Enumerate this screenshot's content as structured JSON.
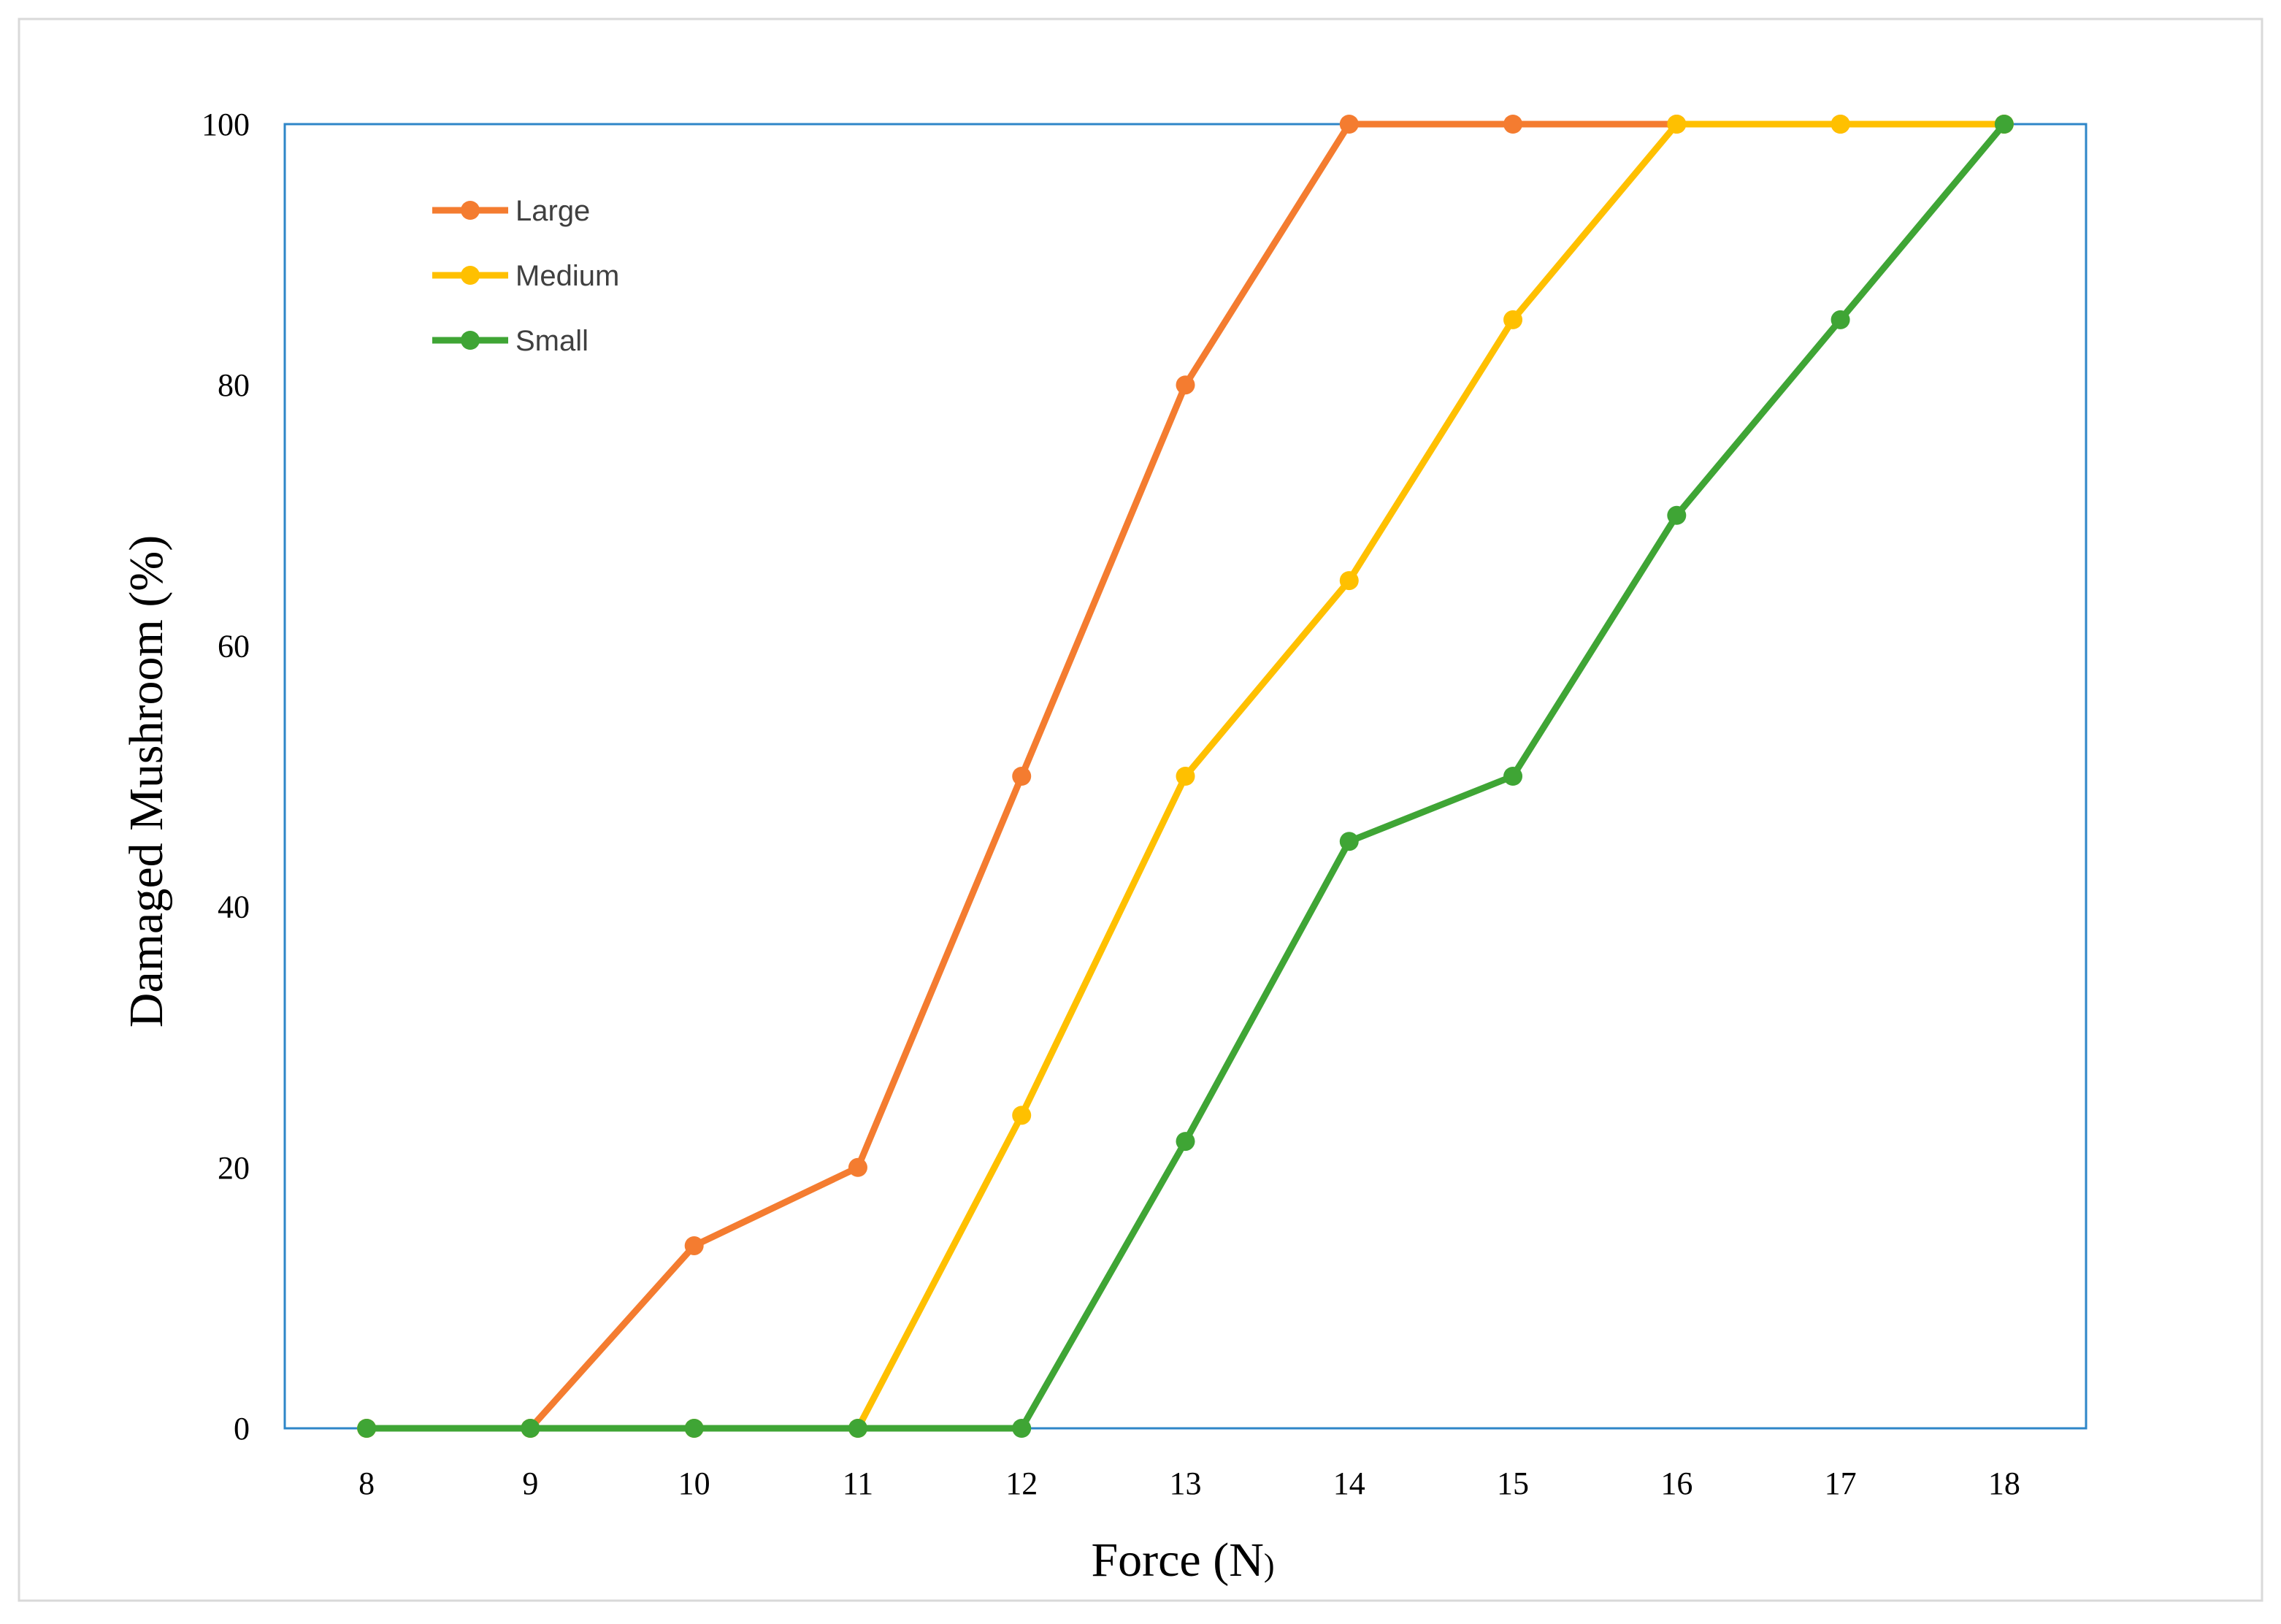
{
  "chart_data": {
    "type": "line",
    "xlabel_main": "Force (N",
    "xlabel_paren": ")",
    "ylabel": "Damaged Mushroom (%)",
    "x": [
      8,
      9,
      10,
      11,
      12,
      13,
      14,
      15,
      16,
      17,
      18
    ],
    "xlim": [
      7.5,
      18.5
    ],
    "ylim": [
      0,
      100
    ],
    "yticks": [
      0,
      20,
      40,
      60,
      80,
      100
    ],
    "grid": false,
    "legend_position": "top-left",
    "frame_color": "#2E86C8",
    "series": [
      {
        "name": "Large",
        "color": "#F47C30",
        "values": [
          0,
          0,
          14,
          20,
          50,
          80,
          100,
          100,
          100,
          100,
          100
        ]
      },
      {
        "name": "Medium",
        "color": "#FFC000",
        "values": [
          0,
          0,
          0,
          0,
          24,
          50,
          65,
          85,
          100,
          100,
          100
        ]
      },
      {
        "name": "Small",
        "color": "#3FA535",
        "values": [
          0,
          0,
          0,
          0,
          0,
          22,
          45,
          50,
          70,
          85,
          100
        ]
      }
    ]
  }
}
